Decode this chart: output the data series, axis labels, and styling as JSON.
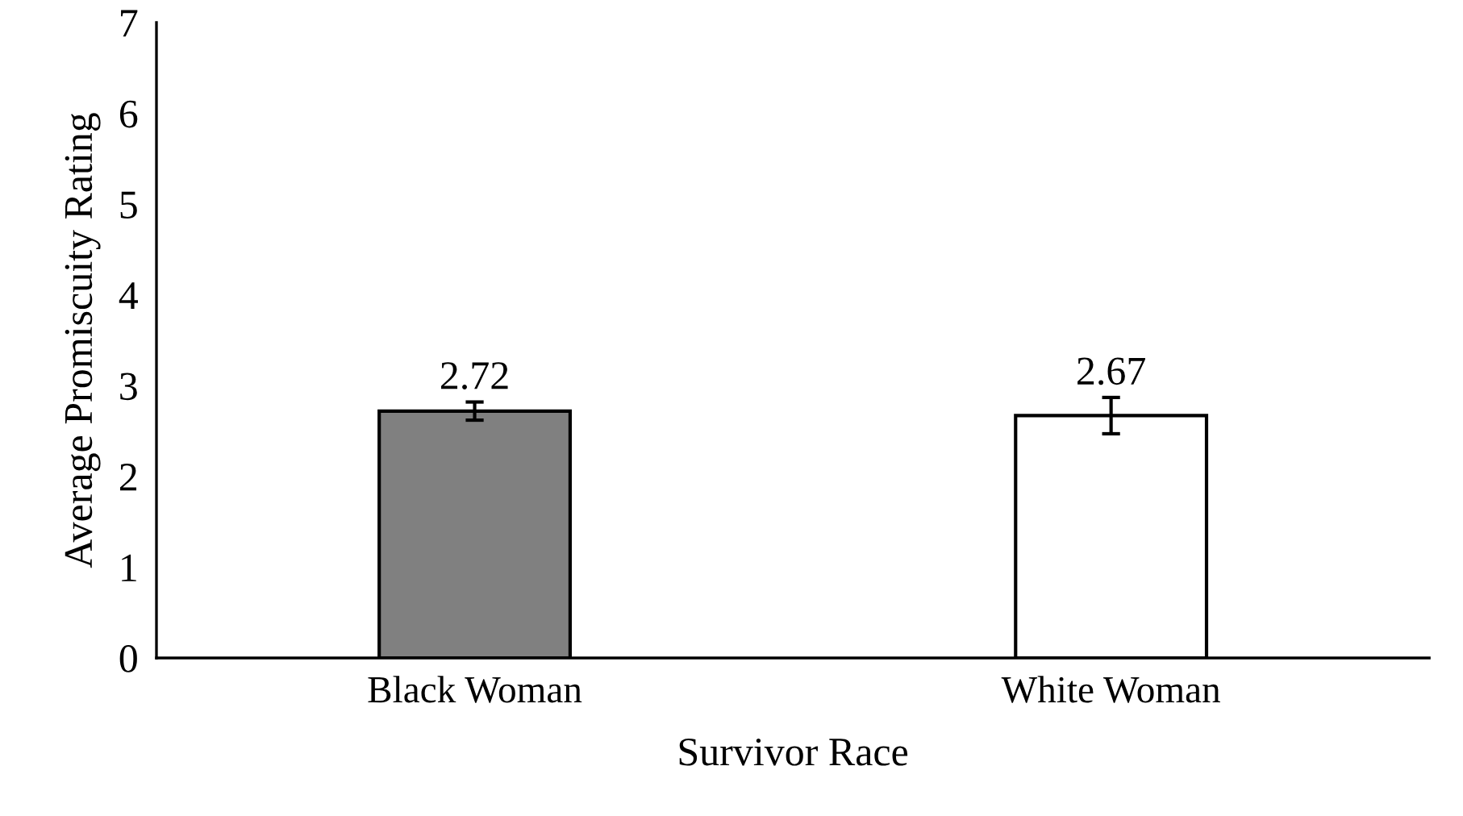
{
  "chart_data": {
    "type": "bar",
    "xlabel": "Survivor Race",
    "ylabel": "Average Promiscuity Rating",
    "categories": [
      "Black Woman",
      "White Woman"
    ],
    "values": [
      2.72,
      2.67
    ],
    "colors": [
      "#808080",
      "#ffffff"
    ],
    "errors": [
      0.1,
      0.2
    ],
    "ylim": [
      0,
      7
    ],
    "yticks": [
      0,
      1,
      2,
      3,
      4,
      5,
      6,
      7
    ],
    "data_labels": true,
    "grid": false
  }
}
